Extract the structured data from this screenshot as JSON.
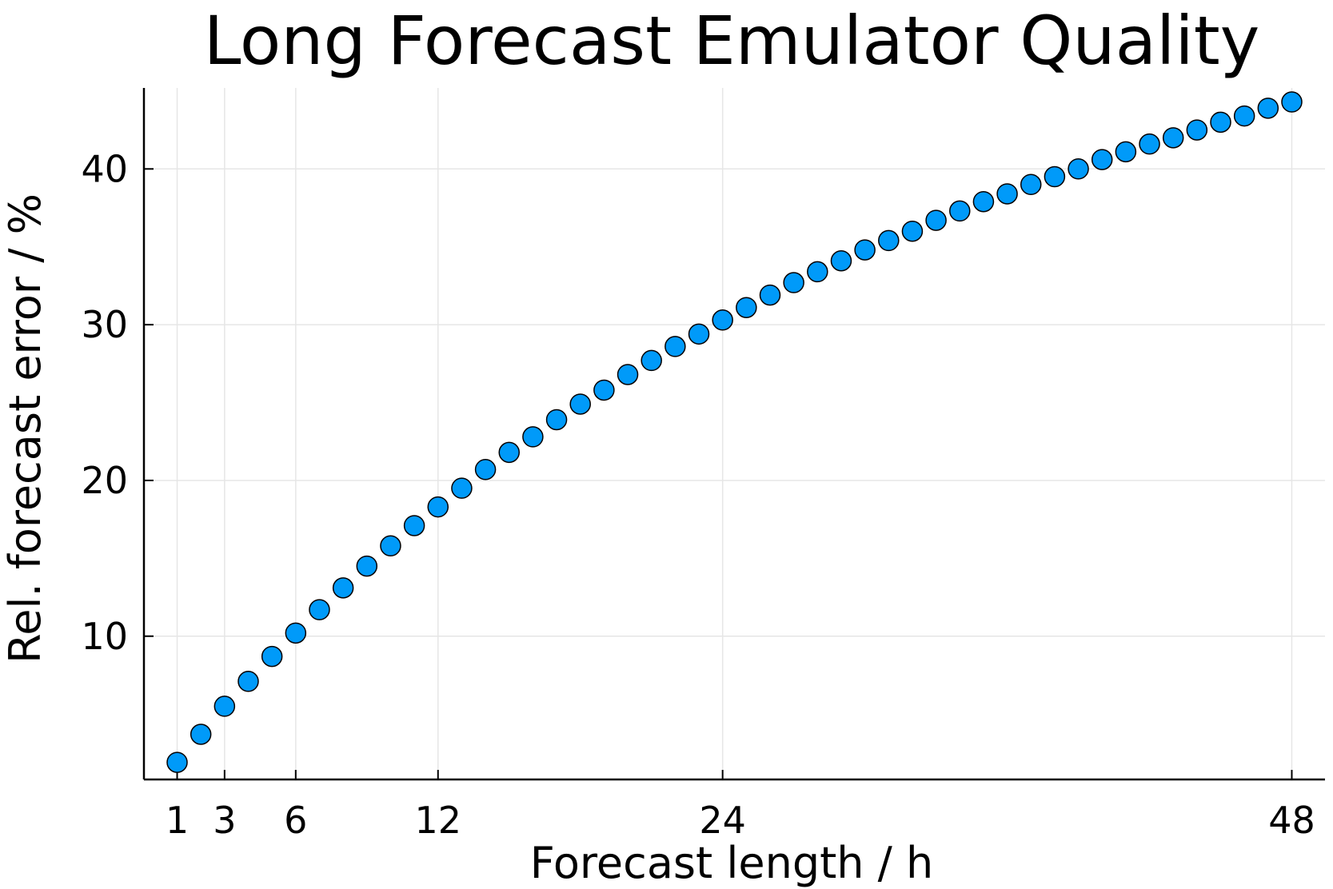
{
  "chart_data": {
    "type": "scatter",
    "title": "Long Forecast Emulator Quality",
    "xlabel": "Forecast length / h",
    "ylabel": "Rel. forecast error / %",
    "x_ticks": [
      1,
      3,
      6,
      12,
      24,
      48
    ],
    "y_ticks": [
      10,
      20,
      30,
      40
    ],
    "x_scale": "linear",
    "xlim": [
      -0.4,
      49.4
    ],
    "ylim": [
      0.8,
      45.2
    ],
    "grid": true,
    "legend": "none",
    "series": [
      {
        "color": "#009af9",
        "x": [
          1,
          2,
          3,
          4,
          5,
          6,
          7,
          8,
          9,
          10,
          11,
          12,
          13,
          14,
          15,
          16,
          17,
          18,
          19,
          20,
          21,
          22,
          23,
          24,
          25,
          26,
          27,
          28,
          29,
          30,
          31,
          32,
          33,
          34,
          35,
          36,
          37,
          38,
          39,
          40,
          41,
          42,
          43,
          44,
          45,
          46,
          47,
          48
        ],
        "y": [
          1.9,
          3.7,
          5.5,
          7.1,
          8.7,
          10.2,
          11.7,
          13.1,
          14.5,
          15.8,
          17.1,
          18.3,
          19.5,
          20.7,
          21.8,
          22.8,
          23.9,
          24.9,
          25.8,
          26.8,
          27.7,
          28.6,
          29.4,
          30.3,
          31.1,
          31.9,
          32.7,
          33.4,
          34.1,
          34.8,
          35.4,
          36.0,
          36.7,
          37.3,
          37.9,
          38.4,
          39.0,
          39.5,
          40.0,
          40.6,
          41.1,
          41.6,
          42.0,
          42.5,
          43.0,
          43.4,
          43.9,
          44.3
        ]
      }
    ]
  }
}
